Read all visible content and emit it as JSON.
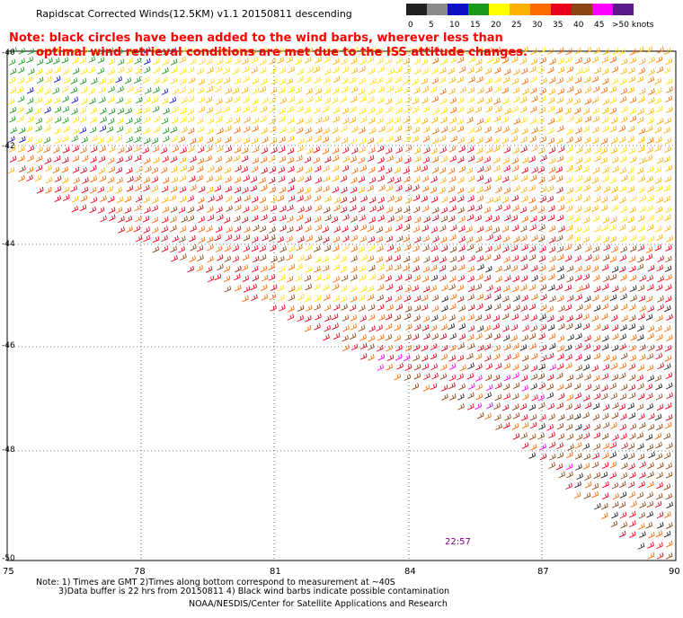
{
  "title": "Rapidscat Corrected Winds(12.5KM) v1.1 20150811 descending",
  "note": {
    "line1": "Note: black circles have been added to the wind barbs, wherever less than",
    "line2": "optimal wind retrieval conditions are met due to the ISS attitude changes."
  },
  "colorbar": {
    "labels": [
      "0",
      "5",
      "10",
      "15",
      "20",
      "25",
      "30",
      "35",
      "40",
      "45",
      ">50 knots"
    ],
    "colors": [
      "#202020",
      "#8a8a8a",
      "#1010c8",
      "#1a9a1a",
      "#ffff00",
      "#ffb000",
      "#ff6a00",
      "#e8001a",
      "#8b4513",
      "#ff00ff",
      "#5a1a8a"
    ]
  },
  "axes": {
    "lat_labels": [
      "-40",
      "-42",
      "-44",
      "-46",
      "-48",
      "-50"
    ],
    "lon_labels": [
      "75",
      "78",
      "81",
      "84",
      "87",
      "90"
    ]
  },
  "time_label": "22:57",
  "footer": {
    "line1": "Note: 1) Times are GMT 2)Times along bottom correspond to measurement at ~40S",
    "line2": "3)Data buffer is 22 hrs from 20150811 4) Black wind barbs indicate possible contamination",
    "line3": "NOAA/NESDIS/Center for Satellite Applications and Research"
  }
}
